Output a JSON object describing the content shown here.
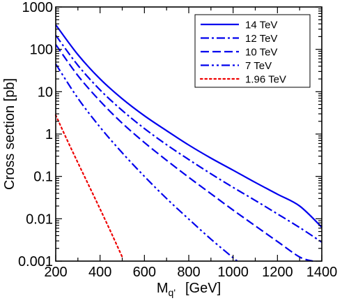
{
  "chart_data": {
    "type": "line",
    "ylabel": "Cross section  [pb]",
    "xlabel_main": "M",
    "xlabel_sub": "q'",
    "xlabel_unit": "[GeV]",
    "xlim": [
      200,
      1400
    ],
    "ylim": [
      0.001,
      1000
    ],
    "yscale": "log",
    "xticks": [
      200,
      400,
      600,
      800,
      1000,
      1200,
      1400
    ],
    "xtick_labels": [
      "200",
      "400",
      "600",
      "800",
      "1000",
      "1200",
      "1400"
    ],
    "yticks": [
      0.001,
      0.01,
      0.1,
      1,
      10,
      100,
      1000
    ],
    "ytick_labels": [
      "0.001",
      "0.01",
      "0.1",
      "1",
      "10",
      "100",
      "1000"
    ],
    "grid": false,
    "legend_position": "top-right",
    "series": [
      {
        "name": "14 TeV",
        "color": "#0000ee",
        "style": "solid",
        "x": [
          200,
          300,
          400,
          500,
          600,
          700,
          800,
          900,
          1000,
          1100,
          1200,
          1300,
          1400
        ],
        "y": [
          380,
          75,
          20,
          6.8,
          2.7,
          1.2,
          0.55,
          0.27,
          0.14,
          0.072,
          0.038,
          0.02,
          0.0063
        ]
      },
      {
        "name": "12 TeV",
        "color": "#0000ee",
        "style": "dashdot",
        "x": [
          200,
          300,
          400,
          500,
          600,
          700,
          800,
          900,
          1000,
          1100,
          1200,
          1300,
          1400
        ],
        "y": [
          215,
          42,
          11,
          3.6,
          1.35,
          0.56,
          0.25,
          0.115,
          0.055,
          0.027,
          0.013,
          0.0062,
          0.0028
        ]
      },
      {
        "name": "10 TeV",
        "color": "#0000ee",
        "style": "dashed",
        "x": [
          200,
          300,
          400,
          500,
          600,
          700,
          800,
          900,
          1000,
          1100,
          1200,
          1300,
          1360
        ],
        "y": [
          130,
          24,
          6.0,
          1.8,
          0.63,
          0.24,
          0.095,
          0.039,
          0.016,
          0.0068,
          0.0029,
          0.00125,
          0.001
        ]
      },
      {
        "name": "7 TeV",
        "color": "#0000ee",
        "style": "dashdotdot",
        "x": [
          200,
          300,
          400,
          500,
          600,
          700,
          800,
          900,
          1000,
          1020
        ],
        "y": [
          45,
          7.0,
          1.45,
          0.36,
          0.1,
          0.03,
          0.0098,
          0.0033,
          0.0012,
          0.001
        ]
      },
      {
        "name": "1.96 TeV",
        "color": "#ee0000",
        "style": "dotted",
        "x": [
          200,
          250,
          300,
          350,
          400,
          450,
          500
        ],
        "y": [
          2.8,
          0.75,
          0.21,
          0.06,
          0.017,
          0.0047,
          0.00125
        ]
      }
    ]
  }
}
